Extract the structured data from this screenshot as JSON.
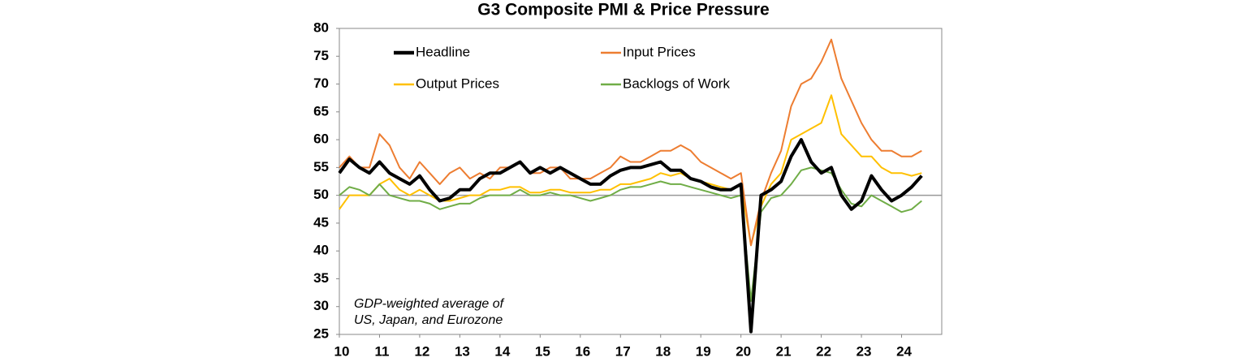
{
  "chart_data": {
    "type": "line",
    "title": "G3 Composite PMI & Price Pressure",
    "annotation": [
      "GDP-weighted average of",
      "US, Japan, and Eurozone"
    ],
    "xlim": [
      2010,
      2025
    ],
    "xticks": [
      {
        "value": 2010,
        "label": "10"
      },
      {
        "value": 2011,
        "label": "11"
      },
      {
        "value": 2012,
        "label": "12"
      },
      {
        "value": 2013,
        "label": "13"
      },
      {
        "value": 2014,
        "label": "14"
      },
      {
        "value": 2015,
        "label": "15"
      },
      {
        "value": 2016,
        "label": "16"
      },
      {
        "value": 2017,
        "label": "17"
      },
      {
        "value": 2018,
        "label": "18"
      },
      {
        "value": 2019,
        "label": "19"
      },
      {
        "value": 2020,
        "label": "20"
      },
      {
        "value": 2021,
        "label": "21"
      },
      {
        "value": 2022,
        "label": "22"
      },
      {
        "value": 2023,
        "label": "23"
      },
      {
        "value": 2024,
        "label": "24"
      }
    ],
    "ylim": [
      25,
      80
    ],
    "yticks": [
      25,
      30,
      35,
      40,
      45,
      50,
      55,
      60,
      65,
      70,
      75,
      80
    ],
    "reference_line": 50,
    "grid": false,
    "x": [
      2010,
      2010.25,
      2010.5,
      2010.75,
      2011,
      2011.25,
      2011.5,
      2011.75,
      2012,
      2012.25,
      2012.5,
      2012.75,
      2013,
      2013.25,
      2013.5,
      2013.75,
      2014,
      2014.25,
      2014.5,
      2014.75,
      2015,
      2015.25,
      2015.5,
      2015.75,
      2016,
      2016.25,
      2016.5,
      2016.75,
      2017,
      2017.25,
      2017.5,
      2017.75,
      2018,
      2018.25,
      2018.5,
      2018.75,
      2019,
      2019.25,
      2019.5,
      2019.75,
      2020,
      2020.25,
      2020.5,
      2020.75,
      2021,
      2021.25,
      2021.5,
      2021.75,
      2022,
      2022.25,
      2022.5,
      2022.75,
      2023,
      2023.25,
      2023.5,
      2023.75,
      2024,
      2024.25,
      2024.5
    ],
    "series": [
      {
        "name": "Headline",
        "color": "#000000",
        "width": 4,
        "values": [
          54,
          56.5,
          55,
          54,
          56,
          54,
          53,
          52,
          53.5,
          51,
          49,
          49.5,
          51,
          51,
          53,
          54,
          54,
          55,
          56,
          54,
          55,
          54,
          55,
          54,
          53,
          52,
          52,
          53.5,
          54.5,
          55,
          55,
          55.5,
          56,
          54.5,
          54.5,
          53,
          52.5,
          51.5,
          51,
          51,
          52,
          25.5,
          50,
          51,
          52.5,
          57,
          60,
          56,
          54,
          55,
          50,
          47.5,
          49,
          53.5,
          51,
          49,
          50,
          51.5,
          53.5
        ]
      },
      {
        "name": "Input Prices",
        "color": "#ed7d31",
        "width": 2,
        "values": [
          55,
          57,
          55,
          55,
          61,
          59,
          55,
          53,
          56,
          54,
          52,
          54,
          55,
          53,
          54,
          53,
          55,
          55,
          56,
          54,
          54,
          55,
          55,
          53,
          53,
          53,
          54,
          55,
          57,
          56,
          56,
          57,
          58,
          58,
          59,
          58,
          56,
          55,
          54,
          53,
          54,
          41,
          49,
          54,
          58,
          66,
          70,
          71,
          74,
          78,
          71,
          67,
          63,
          60,
          58,
          58,
          57,
          57,
          58
        ]
      },
      {
        "name": "Output Prices",
        "color": "#ffc000",
        "width": 2,
        "values": [
          47.5,
          50,
          50,
          50,
          52,
          53,
          51,
          50,
          51,
          50,
          49,
          49,
          49.5,
          50,
          50,
          51,
          51,
          51.5,
          51.5,
          50.5,
          50.5,
          51,
          51,
          50.5,
          50.5,
          50.5,
          51,
          51,
          52,
          52,
          52.5,
          53,
          54,
          53.5,
          54,
          53,
          52.5,
          52,
          51.5,
          51,
          52,
          41,
          48,
          52,
          54,
          60,
          61,
          62,
          63,
          68,
          61,
          59,
          57,
          57,
          55,
          54,
          54,
          53.5,
          54
        ]
      },
      {
        "name": "Backlogs of Work",
        "color": "#70ad47",
        "width": 2,
        "values": [
          50,
          51.5,
          51,
          50,
          52,
          50,
          49.5,
          49,
          49,
          48.5,
          47.5,
          48,
          48.5,
          48.5,
          49.5,
          50,
          50,
          50,
          51,
          50,
          50,
          50.5,
          50,
          50,
          49.5,
          49,
          49.5,
          50,
          51,
          51.5,
          51.5,
          52,
          52.5,
          52,
          52,
          51.5,
          51,
          50.5,
          50,
          49.5,
          50,
          31,
          47,
          49.5,
          50,
          52,
          54.5,
          55,
          54.5,
          54,
          51,
          48.5,
          48,
          50,
          49,
          48,
          47,
          47.5,
          49
        ]
      }
    ]
  }
}
